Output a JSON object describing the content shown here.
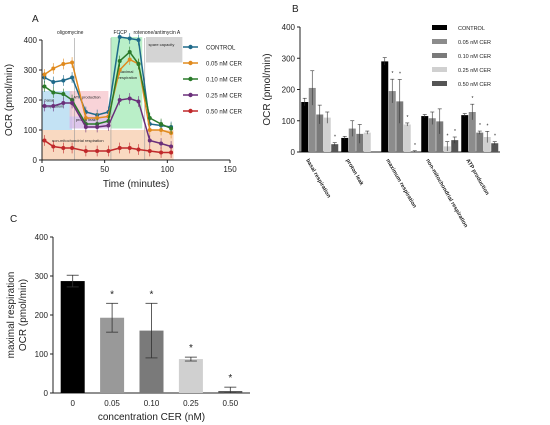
{
  "chart_data": [
    {
      "panel": "A",
      "type": "line",
      "xlabel": "Time (minutes)",
      "ylabel": "OCR (pmol/min)",
      "xlim": [
        0,
        150
      ],
      "ylim": [
        0,
        400
      ],
      "x_ticks": [
        "0",
        "50",
        "100",
        "150"
      ],
      "y_ticks": [
        "0",
        "100",
        "200",
        "300",
        "400"
      ],
      "x": [
        2,
        9,
        17,
        24,
        35,
        44,
        53,
        62,
        70,
        77,
        86,
        95,
        103
      ],
      "series": [
        {
          "name": "CONTROL",
          "color": "#1f6a8a",
          "values": [
            275,
            260,
            265,
            275,
            160,
            150,
            160,
            410,
            405,
            400,
            120,
            115,
            110
          ]
        },
        {
          "name": "0.05 nM CER",
          "color": "#e08a1e",
          "values": [
            285,
            305,
            320,
            325,
            140,
            140,
            145,
            300,
            335,
            320,
            100,
            100,
            90
          ]
        },
        {
          "name": "0.10 nM CER",
          "color": "#2a7a2a",
          "values": [
            245,
            225,
            220,
            200,
            120,
            120,
            130,
            330,
            360,
            320,
            140,
            120,
            105
          ]
        },
        {
          "name": "0.25 nM CER",
          "color": "#6a2f7a",
          "values": [
            180,
            180,
            190,
            190,
            110,
            110,
            115,
            200,
            205,
            195,
            65,
            55,
            45
          ]
        },
        {
          "name": "0.50 nM CER",
          "color": "#c0282a",
          "values": [
            65,
            45,
            40,
            40,
            30,
            30,
            30,
            40,
            40,
            35,
            30,
            25,
            25
          ]
        }
      ],
      "annotations": [
        "oligomycine",
        "FCCP",
        "rotenone/antimycin A",
        "spare capacity",
        "ATP production",
        "maximal respiration",
        "proton leak",
        "non-mitochondrial respiration",
        "basal respiration"
      ],
      "legend_placement": "right"
    },
    {
      "panel": "B",
      "type": "bar",
      "ylabel": "OCR (pmol/min)",
      "ylim": [
        0,
        400
      ],
      "y_ticks": [
        "0",
        "100",
        "200",
        "300",
        "400"
      ],
      "categories": [
        "basal respiration",
        "proton leak",
        "maximum respiration",
        "non-mitochondrial respiration",
        "ATP production"
      ],
      "series": [
        {
          "name": "CONTROL",
          "color": "#000000",
          "values": [
            160,
            45,
            290,
            115,
            118
          ],
          "errors": [
            12,
            5,
            12,
            5,
            5
          ],
          "star": [
            false,
            false,
            false,
            false,
            false
          ]
        },
        {
          "name": "0.05 nM CER",
          "color": "#8c8c8c",
          "values": [
            205,
            75,
            195,
            108,
            128
          ],
          "errors": [
            55,
            25,
            38,
            20,
            25
          ],
          "star": [
            false,
            false,
            true,
            false,
            true
          ]
        },
        {
          "name": "0.10 nM CER",
          "color": "#7a7a7a",
          "values": [
            120,
            58,
            162,
            98,
            62
          ],
          "errors": [
            30,
            30,
            70,
            40,
            5
          ],
          "star": [
            false,
            false,
            true,
            false,
            true
          ]
        },
        {
          "name": "0.25 nM CER",
          "color": "#d0d0d0",
          "values": [
            110,
            62,
            88,
            18,
            48
          ],
          "errors": [
            18,
            5,
            5,
            15,
            18
          ],
          "star": [
            false,
            false,
            true,
            true,
            true
          ]
        },
        {
          "name": "0.50 nM CER",
          "color": "#555555",
          "values": [
            25,
            0,
            2,
            38,
            28
          ],
          "errors": [
            5,
            0,
            2,
            10,
            5
          ],
          "star": [
            true,
            false,
            true,
            true,
            true
          ]
        }
      ],
      "legend_placement": "right"
    },
    {
      "panel": "C",
      "type": "bar",
      "xlabel": "concentration CER (nM)",
      "ylabel": [
        "maximal respiration",
        "OCR (pmol/min)"
      ],
      "ylim": [
        0,
        400
      ],
      "y_ticks": [
        "0",
        "100",
        "200",
        "300",
        "400"
      ],
      "categories": [
        "0",
        "0.05",
        "0.10",
        "0.25",
        "0.50"
      ],
      "values": [
        287,
        193,
        160,
        87,
        5
      ],
      "errors": [
        15,
        37,
        70,
        5,
        10
      ],
      "colors": [
        "#000000",
        "#999999",
        "#7a7a7a",
        "#d0d0d0",
        "#555555"
      ],
      "star": [
        false,
        true,
        true,
        true,
        true
      ]
    }
  ]
}
